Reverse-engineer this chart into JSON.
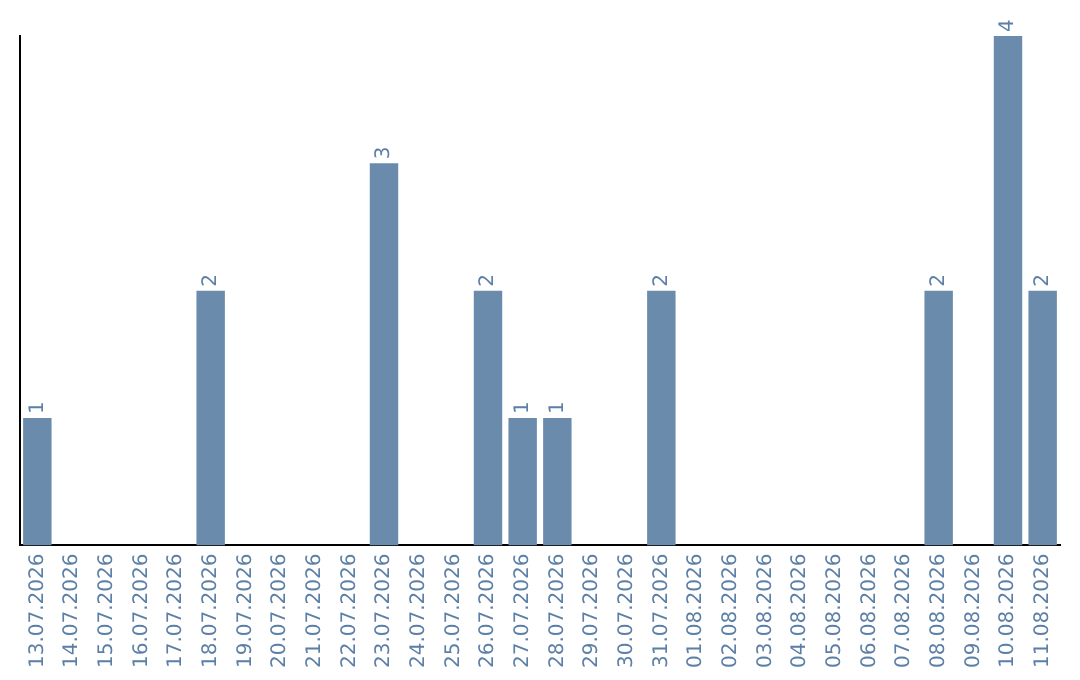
{
  "chart_data": {
    "type": "bar",
    "categories": [
      "13.07.2026",
      "14.07.2026",
      "15.07.2026",
      "16.07.2026",
      "17.07.2026",
      "18.07.2026",
      "19.07.2026",
      "20.07.2026",
      "21.07.2026",
      "22.07.2026",
      "23.07.2026",
      "24.07.2026",
      "25.07.2026",
      "26.07.2026",
      "27.07.2026",
      "28.07.2026",
      "29.07.2026",
      "30.07.2026",
      "31.07.2026",
      "01.08.2026",
      "02.08.2026",
      "03.08.2026",
      "04.08.2026",
      "05.08.2026",
      "06.08.2026",
      "07.08.2026",
      "08.08.2026",
      "09.08.2026",
      "10.08.2026",
      "11.08.2026"
    ],
    "values": [
      1,
      0,
      0,
      0,
      0,
      2,
      0,
      0,
      0,
      0,
      3,
      0,
      0,
      2,
      1,
      1,
      0,
      0,
      2,
      0,
      0,
      0,
      0,
      0,
      0,
      0,
      2,
      0,
      4,
      2
    ],
    "value_labels": [
      "1",
      null,
      null,
      null,
      null,
      "2",
      null,
      null,
      null,
      null,
      "3",
      null,
      null,
      "2",
      "1",
      "1",
      null,
      null,
      "2",
      null,
      null,
      null,
      null,
      null,
      null,
      null,
      "2",
      null,
      "4",
      "2"
    ],
    "color": "#6a8bab",
    "grid": false,
    "legend": false,
    "tick_labels": "x"
  }
}
